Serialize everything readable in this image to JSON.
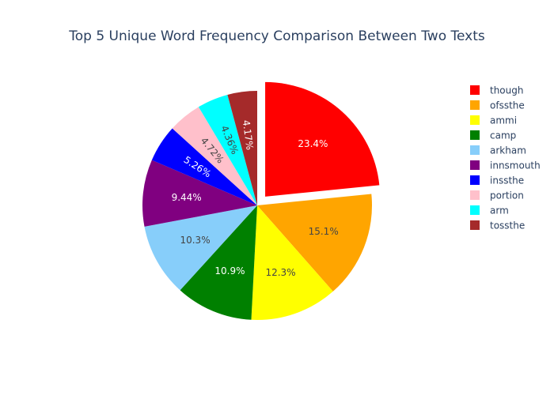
{
  "chart_data": {
    "type": "pie",
    "title": "Top 5 Unique Word Frequency Comparison Between Two Texts",
    "labels": [
      "though",
      "ofssthe",
      "ammi",
      "camp",
      "arkham",
      "innsmouth",
      "inssthe",
      "portion",
      "arm",
      "tossthe"
    ],
    "values": [
      23.4,
      15.1,
      12.3,
      10.9,
      10.3,
      9.44,
      5.26,
      4.72,
      4.36,
      4.17
    ],
    "value_labels": [
      "23.4%",
      "15.1%",
      "12.3%",
      "10.9%",
      "10.3%",
      "9.44%",
      "5.26%",
      "4.72%",
      "4.36%",
      "4.17%"
    ],
    "colors": [
      "#ff0000",
      "#ffa500",
      "#ffff00",
      "#008000",
      "#87cefa",
      "#800080",
      "#0000ff",
      "#ffc0cb",
      "#00ffff",
      "#a52a2a"
    ],
    "label_colors": [
      "#ffffff",
      "#444444",
      "#444444",
      "#ffffff",
      "#444444",
      "#ffffff",
      "#ffffff",
      "#444444",
      "#444444",
      "#ffffff"
    ],
    "pulled": [
      0
    ],
    "direction": "clockwise",
    "legend_position": "right"
  }
}
